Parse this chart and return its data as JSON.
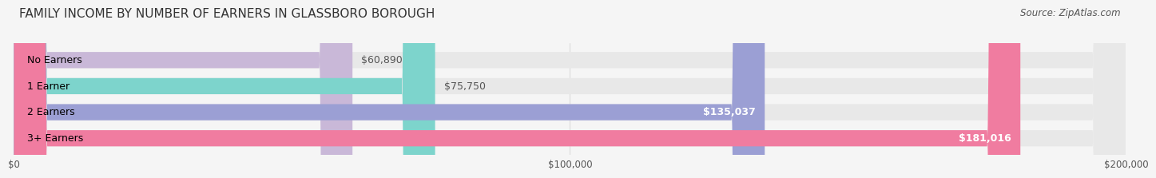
{
  "title": "FAMILY INCOME BY NUMBER OF EARNERS IN GLASSBORO BOROUGH",
  "source": "Source: ZipAtlas.com",
  "categories": [
    "No Earners",
    "1 Earner",
    "2 Earners",
    "3+ Earners"
  ],
  "values": [
    60890,
    75750,
    135037,
    181016
  ],
  "labels": [
    "$60,890",
    "$75,750",
    "$135,037",
    "$181,016"
  ],
  "bar_colors": [
    "#c9b8d8",
    "#7dd4cc",
    "#9b9fd4",
    "#f07ca0"
  ],
  "bar_bg_color": "#e8e8e8",
  "background_color": "#f5f5f5",
  "xlim": [
    0,
    200000
  ],
  "xticks": [
    0,
    100000,
    200000
  ],
  "xtick_labels": [
    "$0",
    "$100,000",
    "$200,000"
  ],
  "title_fontsize": 11,
  "source_fontsize": 8.5,
  "label_fontsize": 9,
  "category_fontsize": 9
}
